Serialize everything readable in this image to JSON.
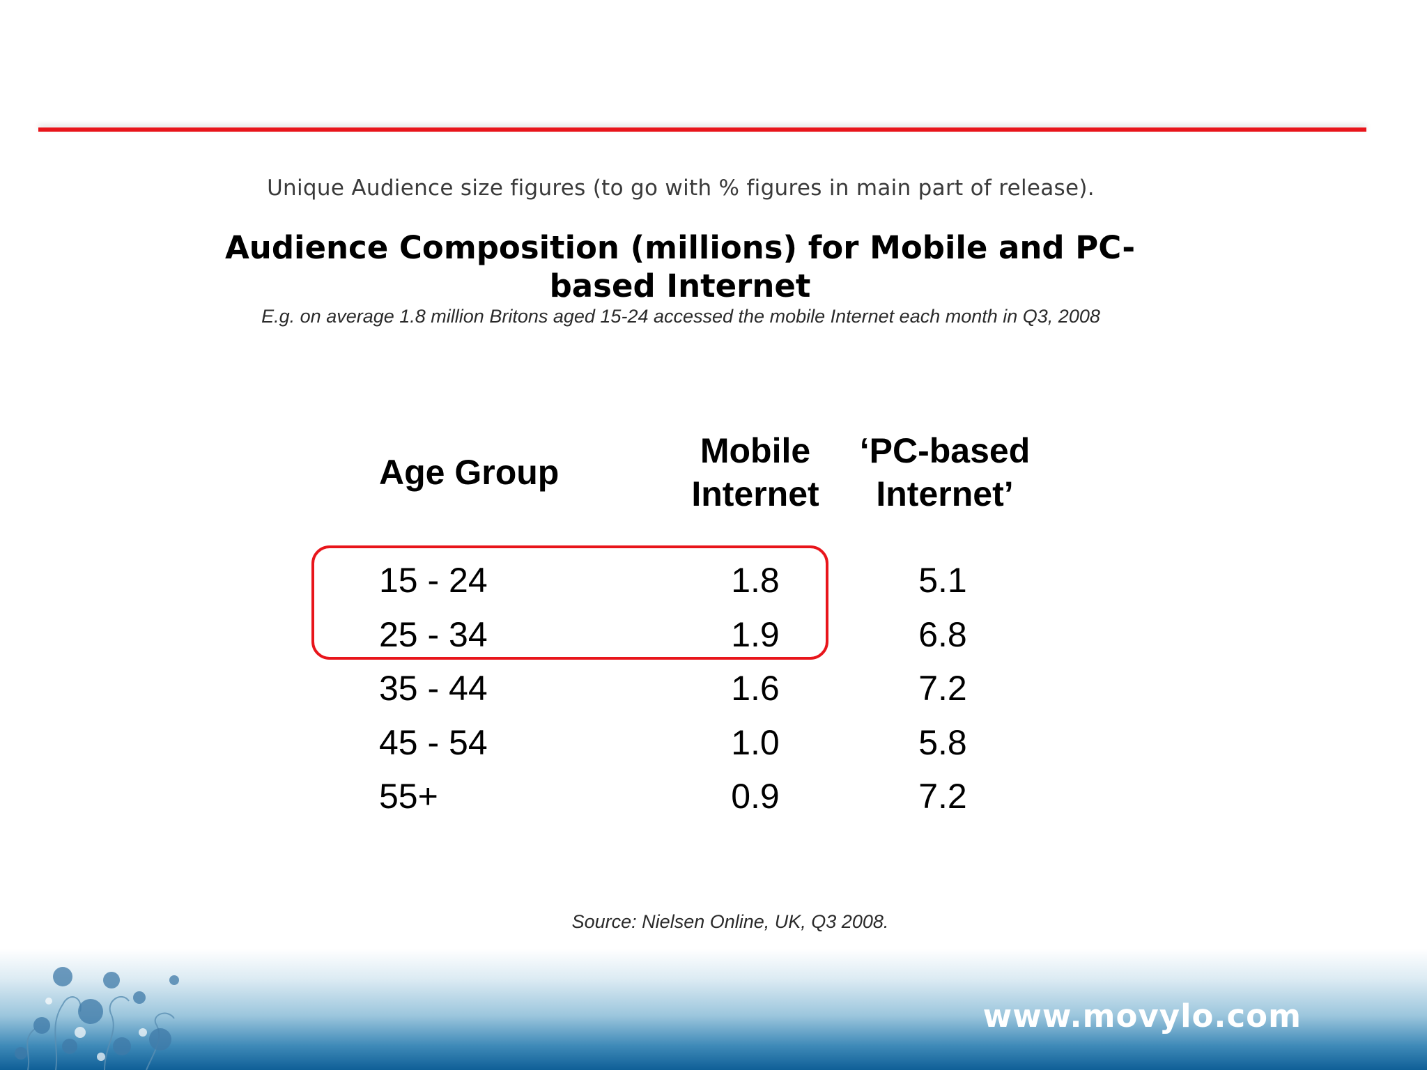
{
  "intro_text": "Unique Audience size figures (to go with % figures in main part of release).",
  "title": "Audience Composition (millions) for Mobile and PC-based Internet",
  "example_text": "E.g. on average 1.8 million Britons aged 15-24 accessed the mobile Internet each month in Q3, 2008",
  "table": {
    "headers": {
      "age_group": "Age Group",
      "mobile_line1": "Mobile",
      "mobile_line2": "Internet",
      "pc_line1": "‘PC-based",
      "pc_line2": "Internet’"
    },
    "rows": [
      {
        "age": "15 - 24",
        "mobile": "1.8",
        "pc": "5.1"
      },
      {
        "age": "25 - 34",
        "mobile": "1.9",
        "pc": "6.8"
      },
      {
        "age": "35 - 44",
        "mobile": "1.6",
        "pc": "7.2"
      },
      {
        "age": "45 - 54",
        "mobile": "1.0",
        "pc": "5.8"
      },
      {
        "age": "55+",
        "mobile": "0.9",
        "pc": "7.2"
      }
    ],
    "highlighted_rows": [
      "15 - 24",
      "25 - 34"
    ]
  },
  "source": "Source: Nielsen Online, UK, Q3 2008.",
  "footer": {
    "url": "www.movylo.com"
  },
  "colors": {
    "accent_red": "#e8151b",
    "footer_blue": "#0f5f97"
  }
}
